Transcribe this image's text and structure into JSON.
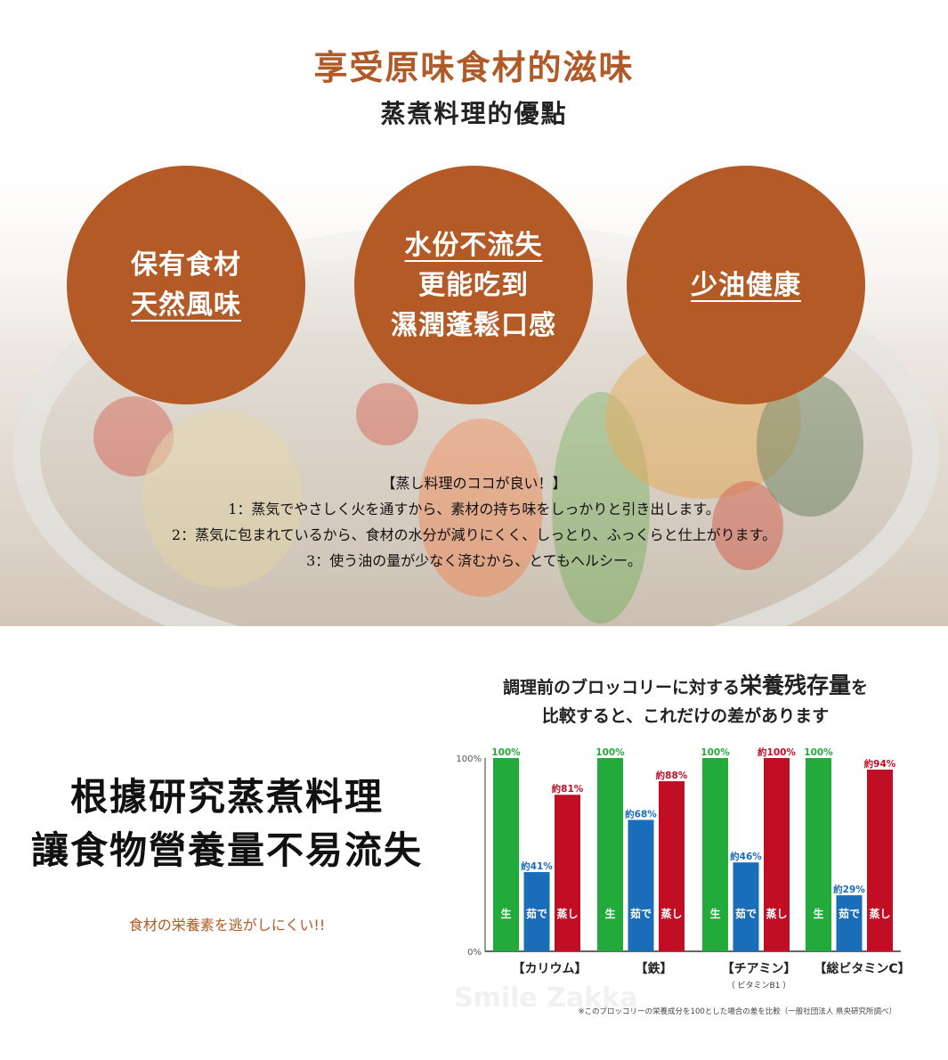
{
  "header": {
    "title": "享受原味食材的滋味",
    "subtitle": "蒸煮料理的優點"
  },
  "circles": [
    {
      "lines": [
        "保有食材",
        "天然風味"
      ],
      "underlined": [
        1
      ]
    },
    {
      "lines": [
        "水份不流失",
        "更能吃到",
        "濕潤蓬鬆口感"
      ],
      "underlined": [
        0
      ]
    },
    {
      "lines": [
        "少油健康"
      ],
      "underlined": [
        0
      ]
    }
  ],
  "points": {
    "heading": "【蒸し料理のココが良い！】",
    "items": [
      "1：蒸気でやさしく火を通すから、素材の持ち味をしっかりと引き出します。",
      "2：蒸気に包まれているから、食材の水分が減りにくく、しっとり、ふっくらと仕上がります。",
      "3：使う油の量が少なく済むから、とてもヘルシー。"
    ]
  },
  "research": {
    "line1": "根據研究蒸煮料理",
    "line2": "讓食物營養量不易流失",
    "tagline": "食材の栄養素を逃がしにくい!!"
  },
  "chart_data": {
    "type": "bar",
    "title_pre": "調理前のブロッコリーに対する",
    "title_emph": "栄養残存量",
    "title_post": "を",
    "title_line2": "比較すると、これだけの差があります",
    "categories": [
      "【カリウム】",
      "【鉄】",
      "【チアミン】",
      "【総ビタミンC】"
    ],
    "category_sub": [
      "",
      "",
      "（ ビタミンB1 ）",
      ""
    ],
    "ylim": [
      0,
      100
    ],
    "yticks": [
      "0%",
      "100%"
    ],
    "series": [
      {
        "name": "生",
        "color": "#22aa3a",
        "values": [
          100,
          100,
          100,
          100
        ],
        "labels": [
          "100%",
          "100%",
          "100%",
          "100%"
        ]
      },
      {
        "name": "茹で",
        "color": "#1a6db8",
        "values": [
          41,
          68,
          46,
          29
        ],
        "labels": [
          "約41%",
          "約68%",
          "約46%",
          "約29%"
        ]
      },
      {
        "name": "蒸し",
        "color": "#c20e25",
        "values": [
          81,
          88,
          100,
          94
        ],
        "labels": [
          "約81%",
          "約88%",
          "約100%",
          "約94%"
        ]
      }
    ],
    "footnote": "※このブロッコリーの栄養成分を100とした場合の差を比較（一般社団法人 県央研究所調べ）",
    "watermark": "Smile Zakka"
  }
}
